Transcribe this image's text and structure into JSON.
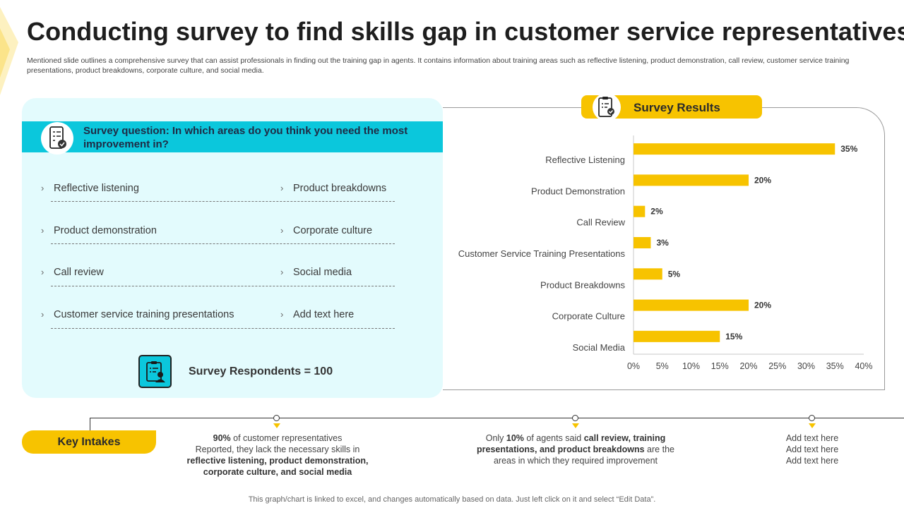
{
  "header": {
    "title": "Conducting survey to find skills gap in customer service representatives",
    "description": "Mentioned slide outlines a comprehensive survey that can assist professionals in finding out the training gap in agents. It contains information about training areas such as reflective listening, product demonstration, call review, customer service training presentations, product breakdowns, corporate culture, and social media."
  },
  "survey": {
    "question": "Survey question: In which areas do you think you need the most improvement in?",
    "options_left": [
      "Reflective listening",
      "Product demonstration",
      "Call review",
      "Customer service training presentations"
    ],
    "options_right": [
      "Product breakdowns",
      "Corporate culture",
      "Social media",
      "Add text here"
    ],
    "respondents": "Survey Respondents = 100",
    "icons": {
      "question": "mobile-checklist-icon",
      "respondents": "clipboard-user-icon"
    }
  },
  "results": {
    "title": "Survey Results",
    "icon": "clipboard-search-icon"
  },
  "chart_data": {
    "type": "bar",
    "orientation": "horizontal",
    "categories": [
      "Reflective Listening",
      "Product Demonstration",
      "Call Review",
      "Customer Service Training Presentations",
      "Product Breakdowns",
      "Corporate Culture",
      "Social Media"
    ],
    "values": [
      35,
      20,
      2,
      3,
      5,
      20,
      15
    ],
    "data_labels": [
      "35%",
      "20%",
      "2%",
      "3%",
      "5%",
      "20%",
      "15%"
    ],
    "x_ticks": [
      "0%",
      "5%",
      "10%",
      "15%",
      "20%",
      "25%",
      "30%",
      "35%",
      "40%"
    ],
    "xlim": [
      0,
      40
    ],
    "grid": false,
    "legend": "none",
    "bar_color": "#f7c300"
  },
  "key_intakes": {
    "label": "Key Intakes",
    "items": [
      {
        "lines": [
          [
            {
              "t": "90%",
              "b": true
            },
            {
              "t": " of customer representatives",
              "b": false
            }
          ],
          [
            {
              "t": "Reported,  they lack the necessary skills in",
              "b": false
            }
          ],
          [
            {
              "t": "reflective listening, product demonstration,",
              "b": true
            }
          ],
          [
            {
              "t": "corporate culture, and social media",
              "b": true
            }
          ]
        ]
      },
      {
        "lines": [
          [
            {
              "t": "Only ",
              "b": false
            },
            {
              "t": "10%",
              "b": true
            },
            {
              "t": " of agents said ",
              "b": false
            },
            {
              "t": "call review, training",
              "b": true
            }
          ],
          [
            {
              "t": "presentations, and product breakdowns",
              "b": true
            },
            {
              "t": " are the",
              "b": false
            }
          ],
          [
            {
              "t": "areas in which they required improvement",
              "b": false
            }
          ]
        ]
      },
      {
        "lines": [
          [
            {
              "t": "Add text here",
              "b": false
            }
          ],
          [
            {
              "t": "Add text here",
              "b": false
            }
          ],
          [
            {
              "t": "Add text here",
              "b": false
            }
          ]
        ]
      }
    ]
  },
  "footer": {
    "note": "This graph/chart is linked to excel,  and changes automatically based on data. Just left click on it and select “Edit Data”."
  },
  "colors": {
    "accent_yellow": "#f7c300",
    "accent_cyan": "#0bc7dc",
    "panel_bg": "#e3fbfd"
  }
}
